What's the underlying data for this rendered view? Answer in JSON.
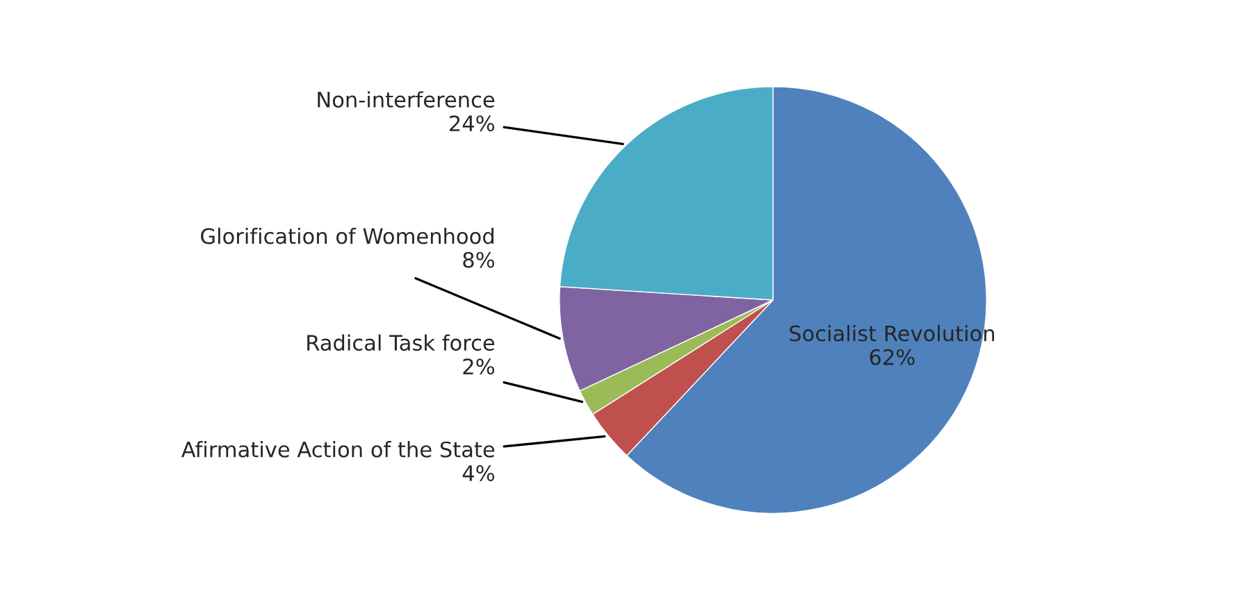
{
  "chart_data": {
    "type": "pie",
    "categories": [
      "Socialist Revolution",
      "Afirmative Action of the State",
      "Radical Task force",
      "Glorification of Womenhood",
      "Non-interference"
    ],
    "values": [
      62,
      4,
      2,
      8,
      24
    ],
    "value_labels": [
      "62%",
      "4%",
      "2%",
      "8%",
      "24%"
    ],
    "colors": [
      "#4f81bd",
      "#c0504d",
      "#9bbb59",
      "#8064a2",
      "#4bacc6"
    ]
  }
}
